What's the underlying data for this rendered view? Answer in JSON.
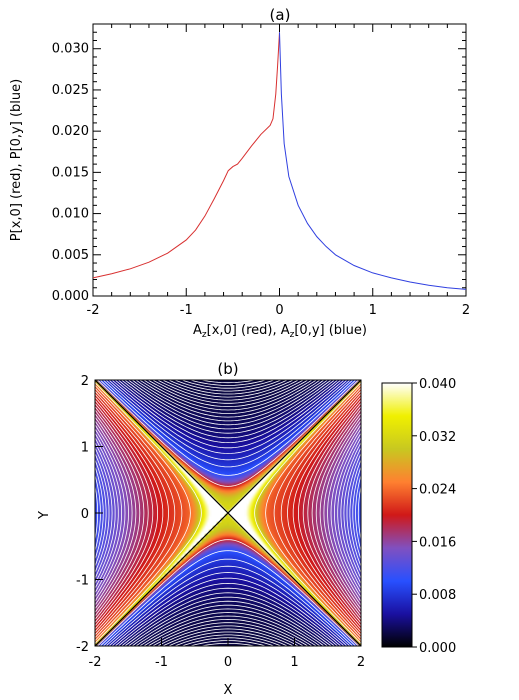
{
  "chart_data": [
    {
      "type": "line",
      "title": "(a)",
      "xlabel": "A₂[x,0] (red), A₂[0,y] (blue)",
      "xlabel_parts": [
        "A",
        "z",
        "[x,0] (red), A",
        "z",
        "[0,y] (blue)"
      ],
      "ylabel": "P[x,0] (red), P[0,y] (blue)",
      "xlim": [
        -2,
        2
      ],
      "ylim": [
        0,
        0.033
      ],
      "xticks": [
        "-2",
        "-1",
        "0",
        "1",
        "2"
      ],
      "yticks": [
        "0.000",
        "0.005",
        "0.010",
        "0.015",
        "0.020",
        "0.025",
        "0.030"
      ],
      "series": [
        {
          "name": "red",
          "color": "#d83030",
          "points": [
            [
              -2.0,
              0.0022
            ],
            [
              -1.8,
              0.0027
            ],
            [
              -1.6,
              0.0033
            ],
            [
              -1.4,
              0.0041
            ],
            [
              -1.2,
              0.0052
            ],
            [
              -1.0,
              0.0068
            ],
            [
              -0.9,
              0.008
            ],
            [
              -0.8,
              0.0097
            ],
            [
              -0.7,
              0.0118
            ],
            [
              -0.6,
              0.014
            ],
            [
              -0.55,
              0.0152
            ],
            [
              -0.5,
              0.0157
            ],
            [
              -0.45,
              0.016
            ],
            [
              -0.4,
              0.0167
            ],
            [
              -0.3,
              0.0182
            ],
            [
              -0.2,
              0.0196
            ],
            [
              -0.1,
              0.0207
            ],
            [
              -0.07,
              0.0215
            ],
            [
              -0.04,
              0.0245
            ],
            [
              -0.02,
              0.028
            ],
            [
              0.0,
              0.032
            ]
          ]
        },
        {
          "name": "blue",
          "color": "#3040e0",
          "points": [
            [
              0.0,
              0.032
            ],
            [
              0.02,
              0.0245
            ],
            [
              0.05,
              0.0185
            ],
            [
              0.1,
              0.0145
            ],
            [
              0.2,
              0.011
            ],
            [
              0.3,
              0.0088
            ],
            [
              0.4,
              0.0072
            ],
            [
              0.5,
              0.006
            ],
            [
              0.6,
              0.005
            ],
            [
              0.8,
              0.0037
            ],
            [
              1.0,
              0.0028
            ],
            [
              1.2,
              0.0022
            ],
            [
              1.4,
              0.0017
            ],
            [
              1.6,
              0.0013
            ],
            [
              1.8,
              0.001
            ],
            [
              2.0,
              0.0008
            ]
          ]
        }
      ]
    },
    {
      "type": "heatmap",
      "title": "(b)",
      "xlabel": "X",
      "ylabel": "Y",
      "xlim": [
        -2,
        2
      ],
      "ylim": [
        -2,
        2
      ],
      "xticks": [
        "-2",
        "-1",
        "0",
        "1",
        "2"
      ],
      "yticks": [
        "-2",
        "-1",
        "0",
        "1",
        "2"
      ],
      "colorbar": {
        "range": [
          0.0,
          0.04
        ],
        "ticks": [
          "0.000",
          "0.008",
          "0.016",
          "0.024",
          "0.032",
          "0.040"
        ],
        "colormap": [
          "#000000",
          "#1a10a0",
          "#2850ff",
          "#8050c0",
          "#d01818",
          "#ff8030",
          "#c8c820",
          "#f0f000",
          "#ffffff"
        ]
      },
      "contour_lines": "white field lines (A_z contours)"
    }
  ]
}
